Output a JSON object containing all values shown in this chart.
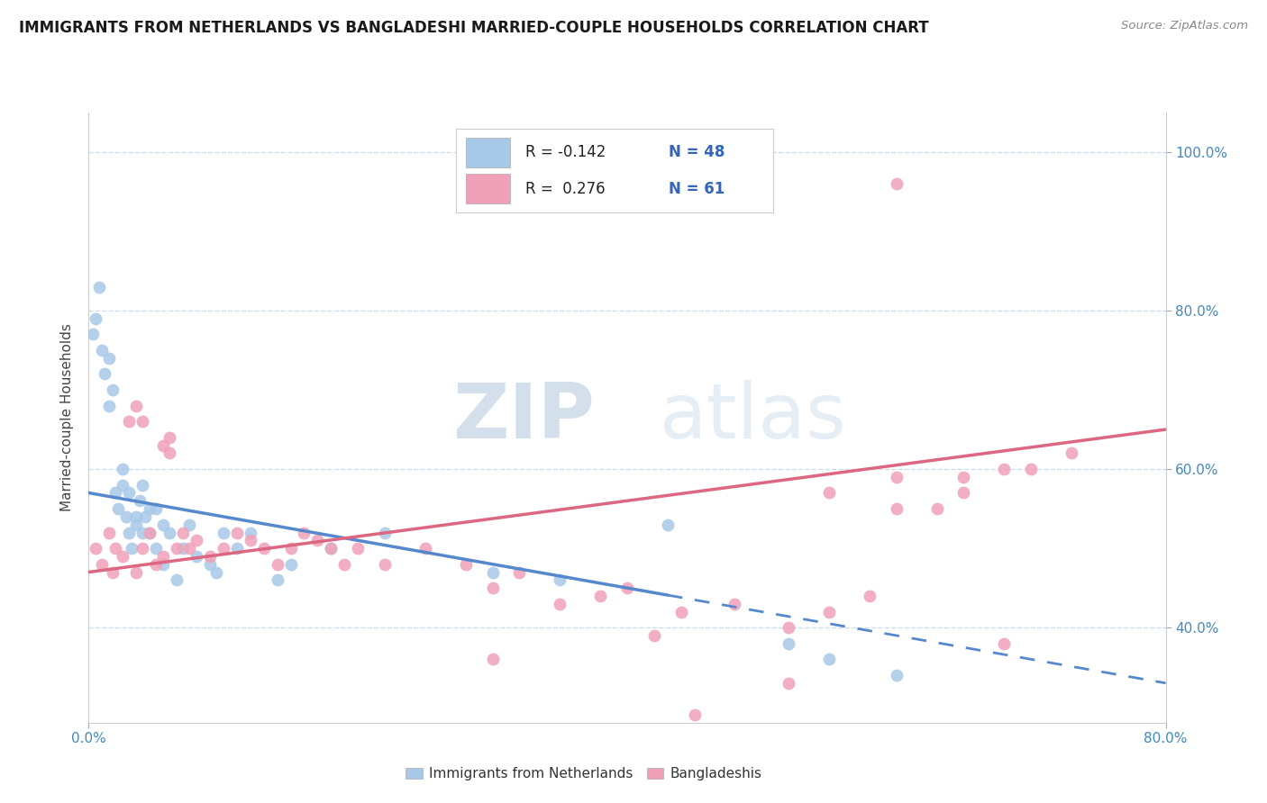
{
  "title": "IMMIGRANTS FROM NETHERLANDS VS BANGLADESHI MARRIED-COUPLE HOUSEHOLDS CORRELATION CHART",
  "source_text": "Source: ZipAtlas.com",
  "ylabel": "Married-couple Households",
  "xmin": 0.0,
  "xmax": 80.0,
  "ymin": 28.0,
  "ymax": 105.0,
  "yticks": [
    40.0,
    60.0,
    80.0,
    100.0
  ],
  "ytick_labels": [
    "40.0%",
    "60.0%",
    "80.0%",
    "100.0%"
  ],
  "color_blue": "#a8c8e8",
  "color_pink": "#f0a0b8",
  "line_blue": "#5588cc",
  "line_pink": "#dd6680",
  "watermark_zip": "ZIP",
  "watermark_atlas": "atlas",
  "legend_label1": "Immigrants from Netherlands",
  "legend_label2": "Bangladeshis",
  "bg_color": "#ffffff",
  "grid_color": "#ccddee",
  "plot_bg": "#ffffff",
  "blue_line_x0": 0.0,
  "blue_line_y0": 57.0,
  "blue_line_x1": 80.0,
  "blue_line_y1": 33.0,
  "blue_solid_end": 43.0,
  "pink_line_x0": 0.0,
  "pink_line_y0": 47.0,
  "pink_line_x1": 80.0,
  "pink_line_y1": 65.0,
  "blue_scatter_x": [
    0.3,
    0.5,
    0.8,
    1.0,
    1.2,
    1.5,
    1.5,
    1.8,
    2.0,
    2.2,
    2.5,
    2.5,
    2.8,
    3.0,
    3.0,
    3.2,
    3.5,
    3.5,
    3.8,
    4.0,
    4.0,
    4.2,
    4.5,
    4.5,
    5.0,
    5.0,
    5.5,
    5.5,
    6.0,
    6.5,
    7.0,
    7.5,
    8.0,
    9.0,
    9.5,
    10.0,
    11.0,
    12.0,
    14.0,
    15.0,
    18.0,
    22.0,
    30.0,
    35.0,
    43.0,
    52.0,
    55.0,
    60.0
  ],
  "blue_scatter_y": [
    77.0,
    79.0,
    83.0,
    75.0,
    72.0,
    68.0,
    74.0,
    70.0,
    57.0,
    55.0,
    60.0,
    58.0,
    54.0,
    57.0,
    52.0,
    50.0,
    54.0,
    53.0,
    56.0,
    58.0,
    52.0,
    54.0,
    52.0,
    55.0,
    50.0,
    55.0,
    48.0,
    53.0,
    52.0,
    46.0,
    50.0,
    53.0,
    49.0,
    48.0,
    47.0,
    52.0,
    50.0,
    52.0,
    46.0,
    48.0,
    50.0,
    52.0,
    47.0,
    46.0,
    53.0,
    38.0,
    36.0,
    34.0
  ],
  "pink_scatter_x": [
    0.5,
    1.0,
    1.5,
    1.8,
    2.0,
    2.5,
    3.0,
    3.5,
    4.0,
    4.5,
    5.0,
    5.5,
    6.0,
    6.5,
    7.0,
    7.5,
    8.0,
    9.0,
    10.0,
    11.0,
    12.0,
    13.0,
    14.0,
    15.0,
    16.0,
    17.0,
    18.0,
    19.0,
    20.0,
    22.0,
    25.0,
    28.0,
    30.0,
    32.0,
    35.0,
    38.0,
    40.0,
    44.0,
    48.0,
    52.0,
    55.0,
    58.0,
    60.0,
    65.0,
    68.0,
    70.0,
    73.0,
    3.5,
    4.0,
    5.5,
    6.0,
    30.0,
    52.0,
    60.0,
    63.0,
    60.0,
    42.0,
    55.0,
    65.0,
    68.0,
    45.0
  ],
  "pink_scatter_y": [
    50.0,
    48.0,
    52.0,
    47.0,
    50.0,
    49.0,
    66.0,
    68.0,
    50.0,
    52.0,
    48.0,
    63.0,
    62.0,
    50.0,
    52.0,
    50.0,
    51.0,
    49.0,
    50.0,
    52.0,
    51.0,
    50.0,
    48.0,
    50.0,
    52.0,
    51.0,
    50.0,
    48.0,
    50.0,
    48.0,
    50.0,
    48.0,
    45.0,
    47.0,
    43.0,
    44.0,
    45.0,
    42.0,
    43.0,
    40.0,
    42.0,
    44.0,
    55.0,
    57.0,
    60.0,
    60.0,
    62.0,
    47.0,
    66.0,
    49.0,
    64.0,
    36.0,
    33.0,
    96.0,
    55.0,
    59.0,
    39.0,
    57.0,
    59.0,
    38.0,
    29.0
  ]
}
